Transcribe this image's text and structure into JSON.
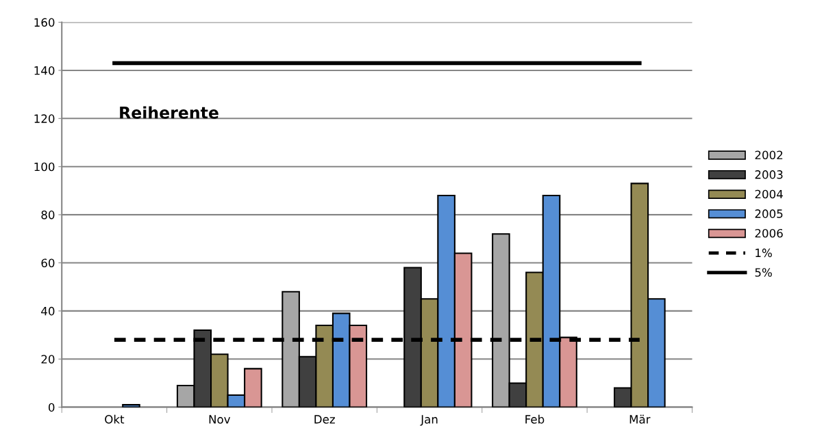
{
  "chart_data": {
    "type": "bar",
    "categories": [
      "Okt",
      "Nov",
      "Dez",
      "Jan",
      "Feb",
      "Mär"
    ],
    "series": [
      {
        "name": "2002",
        "color": "#a6a6a6",
        "values": [
          null,
          9,
          48,
          null,
          72,
          null
        ]
      },
      {
        "name": "2003",
        "color": "#404040",
        "values": [
          null,
          32,
          21,
          58,
          10,
          8
        ]
      },
      {
        "name": "2004",
        "color": "#948a54",
        "values": [
          null,
          22,
          34,
          45,
          56,
          93
        ]
      },
      {
        "name": "2005",
        "color": "#558ed5",
        "values": [
          1,
          5,
          39,
          88,
          88,
          45
        ]
      },
      {
        "name": "2006",
        "color": "#d99694",
        "values": [
          null,
          16,
          34,
          64,
          29,
          null
        ]
      },
      {
        "name": "1%",
        "type": "line",
        "color": "#000000",
        "line_style": "dashed",
        "values": [
          28,
          28,
          28,
          28,
          28,
          28
        ]
      },
      {
        "name": "5%",
        "type": "line",
        "color": "#000000",
        "line_style": "solid",
        "values": [
          143,
          143,
          143,
          143,
          143,
          143
        ]
      }
    ],
    "ylim": [
      0,
      160
    ],
    "yticks": [
      0,
      20,
      40,
      60,
      80,
      100,
      120,
      140,
      160
    ],
    "grid": "y",
    "legend": "right",
    "marker": "none",
    "annotations": [
      "Reiherente"
    ]
  }
}
